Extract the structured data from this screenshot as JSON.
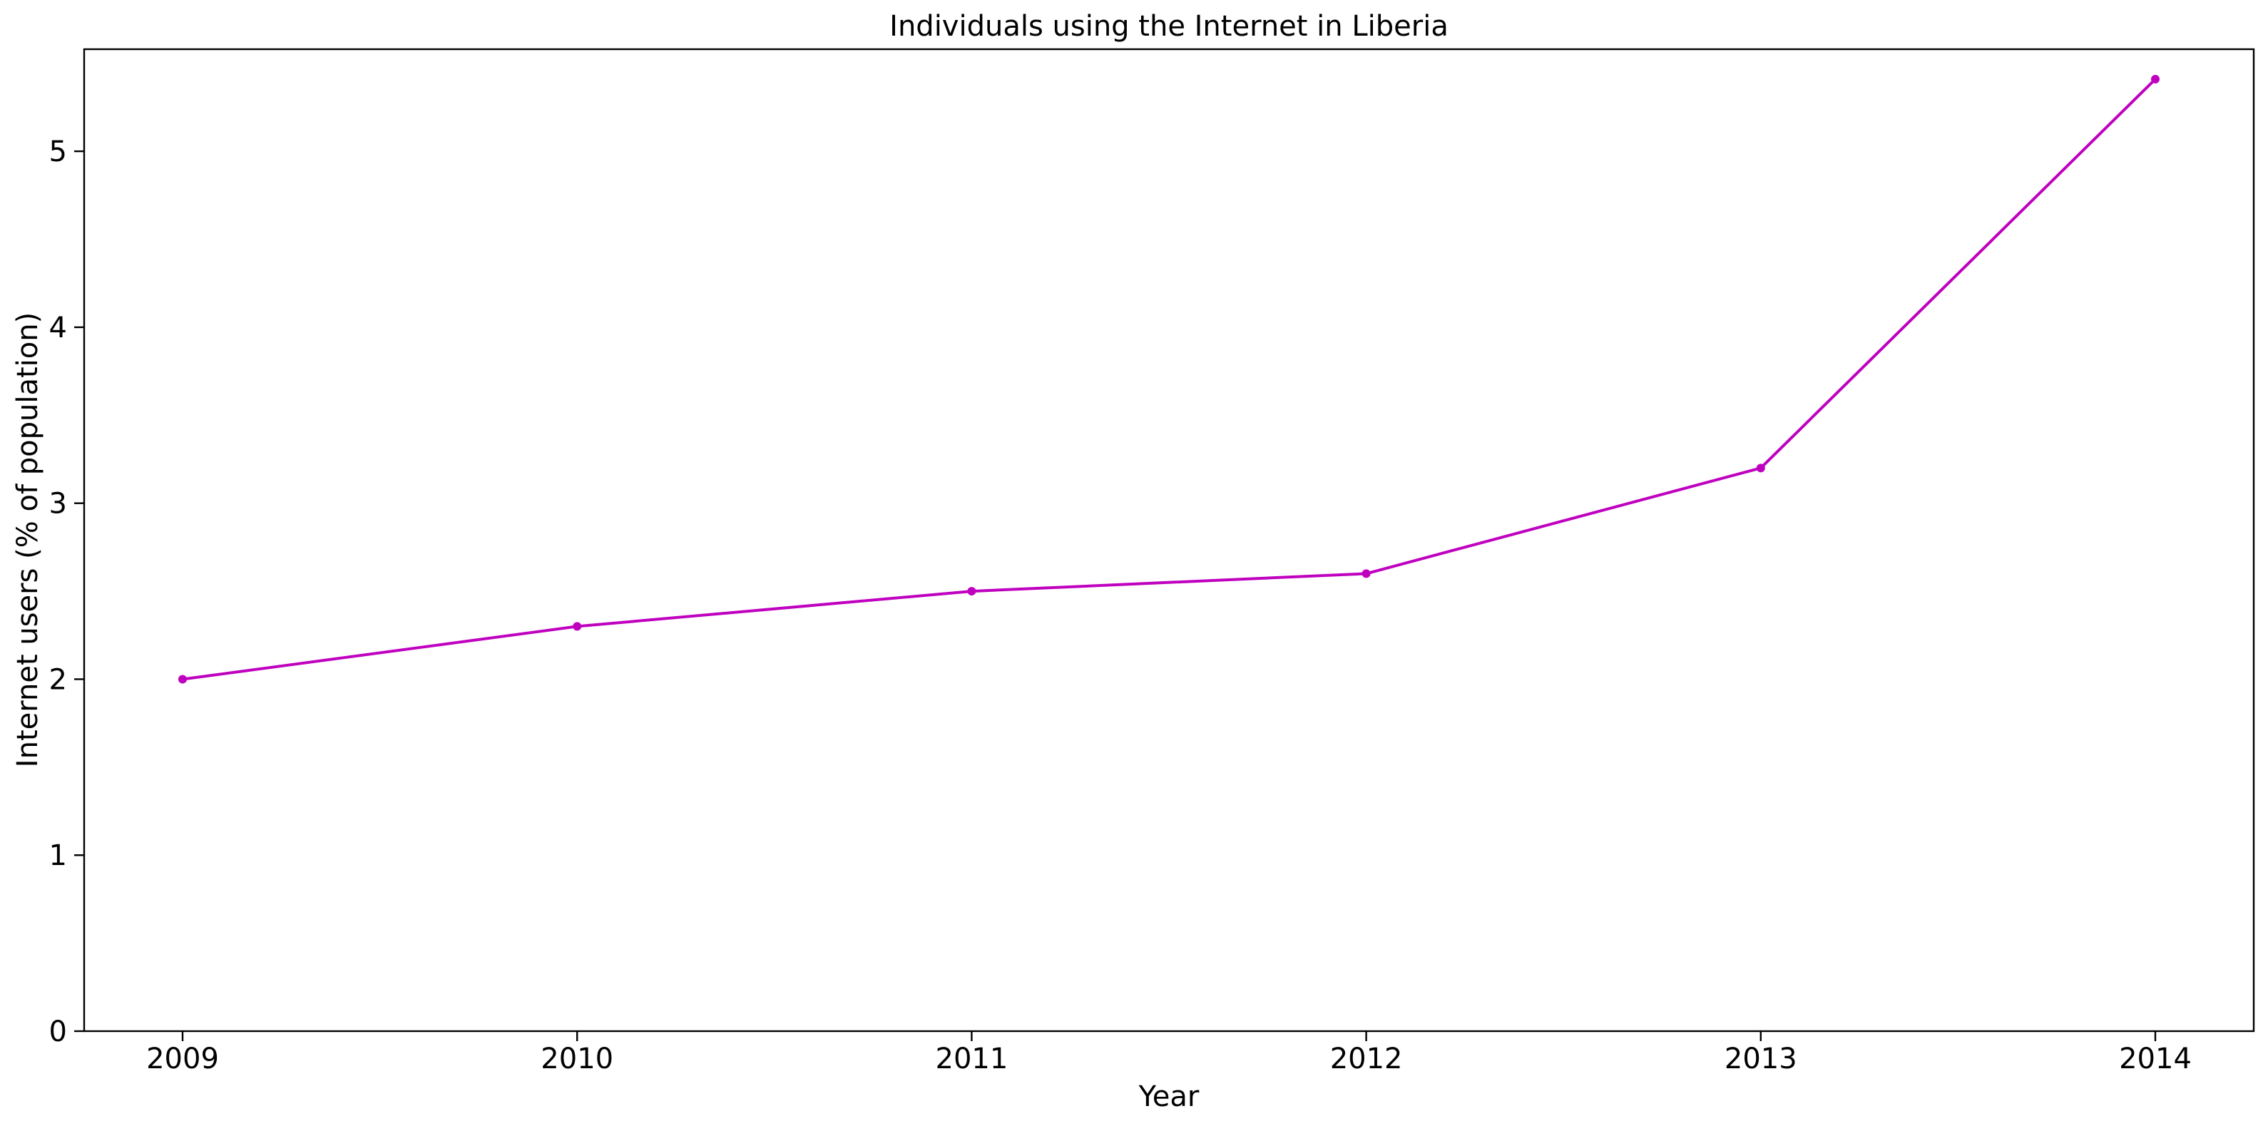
{
  "chart_data": {
    "type": "line",
    "title": "Individuals using the Internet in Liberia",
    "xlabel": "Year",
    "ylabel": "Internet users (% of population)",
    "x": [
      "2009",
      "2010",
      "2011",
      "2012",
      "2013",
      "2014"
    ],
    "series": [
      {
        "values": [
          2.0,
          2.3,
          2.5,
          2.6,
          3.2,
          5.41
        ],
        "color": "#bf00bf"
      }
    ],
    "yticks": [
      "0",
      "1",
      "2",
      "3",
      "4",
      "5"
    ],
    "ylim": [
      0,
      5.58
    ],
    "grid": false,
    "legend": "none"
  }
}
